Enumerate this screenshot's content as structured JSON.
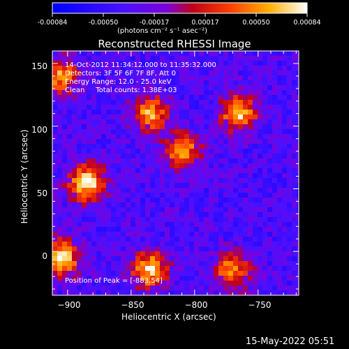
{
  "colorbar": {
    "ticks": [
      "-0.00084",
      "-0.00050",
      "-0.00017",
      "0.00017",
      "0.00050",
      "0.00084"
    ],
    "unit_label": "(photons cm⁻² s⁻¹ asec⁻²)",
    "range": [
      -0.00084,
      0.00084
    ]
  },
  "chart_data": {
    "type": "heatmap",
    "title": "Reconstructed RHESSI Image",
    "xlabel": "Heliocentric X (arcsec)",
    "ylabel": "Heliocentric Y (arcsec)",
    "xlim": [
      -912,
      -718
    ],
    "ylim": [
      -35,
      160
    ],
    "xticks": [
      -900,
      -850,
      -800,
      -750
    ],
    "yticks": [
      0,
      50,
      100,
      150
    ],
    "ytick_labels": [
      "0",
      "50",
      "100",
      "150"
    ],
    "xtick_labels": [
      "−900",
      "−850",
      "−800",
      "−750"
    ],
    "colormap": "rhessi-blue-purple-red-yellow",
    "bright_regions": [
      {
        "x": -885,
        "y": 55,
        "level": 0.00084
      },
      {
        "x": -905,
        "y": -5,
        "level": 0.00075
      },
      {
        "x": -835,
        "y": -15,
        "level": 0.0007
      },
      {
        "x": -765,
        "y": 110,
        "level": 0.00065
      },
      {
        "x": -835,
        "y": 110,
        "level": 0.00055
      },
      {
        "x": -810,
        "y": 80,
        "level": 0.00055
      },
      {
        "x": -770,
        "y": -15,
        "level": 0.0005
      },
      {
        "x": -905,
        "y": 140,
        "level": 0.0005
      }
    ]
  },
  "annotations": {
    "time": "14-Oct-2012 11:34:12.000 to 11:35:32.000",
    "detectors": "Detectors: 3F 5F 6F 7F 8F, Att 0",
    "energy": "Energy Range: 12.0 - 25.0 keV",
    "clean": "Clean     Total counts: 1.38E+03",
    "peak": "Position of Peak = [-883,54]"
  },
  "footer_date": "15-May-2022 05:51"
}
